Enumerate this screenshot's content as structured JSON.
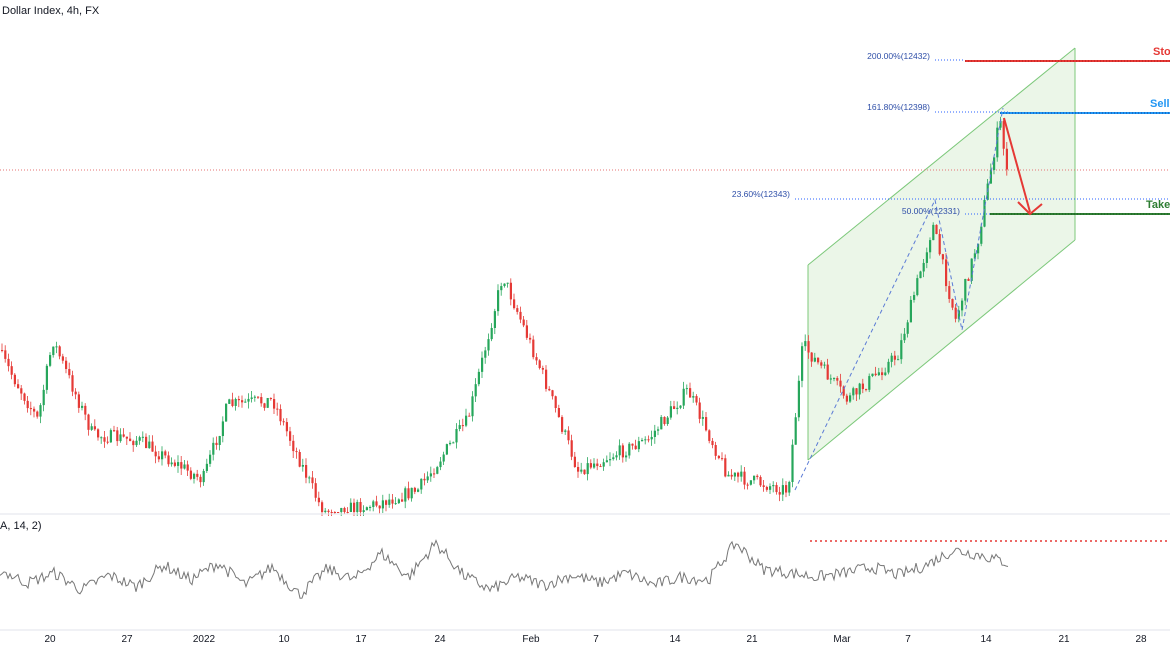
{
  "header": {
    "title": "Dollar Index, 4h, FX"
  },
  "oscillator": {
    "label": "A, 14, 2)"
  },
  "colors": {
    "up": "#26a65b",
    "down": "#e53935",
    "wick": "#333333",
    "channel_fill": "#e7f5e4",
    "channel_line": "#7cc87a",
    "fib_line": "#2962ff",
    "stop": "#e53935",
    "sell": "#2196f3",
    "take": "#2e7d32",
    "arrow": "#e53935",
    "osc_line": "#777777",
    "osc_ref": "#e53935",
    "price_ref": "#e57373",
    "axis_text": "#131722"
  },
  "annotations": {
    "stop_label": "Sto",
    "sell_label": "Sell",
    "take_label": "Take"
  },
  "chart_data": {
    "type": "candlestick",
    "title": "Dollar Index, 4h, FX",
    "x_ticks": [
      "20",
      "27",
      "2022",
      "10",
      "17",
      "24",
      "Feb",
      "7",
      "14",
      "21",
      "Mar",
      "7",
      "14",
      "21",
      "28"
    ],
    "fib_levels": [
      {
        "label": "200.00%(12432)",
        "value": 12432
      },
      {
        "label": "161.80%(12398)",
        "value": 12398
      },
      {
        "label": "23.60%(12343)",
        "value": 12343
      },
      {
        "label": "50.00%(12331)",
        "value": 12331
      }
    ],
    "anchors": [
      {
        "name": "start",
        "value": 11885
      },
      {
        "name": "peak",
        "value": 12245
      },
      {
        "name": "low",
        "value": 11828
      },
      {
        "name": "channel_start",
        "value": 11860
      },
      {
        "name": "swing_high",
        "value": 12345
      },
      {
        "name": "swing_low",
        "value": 12240
      },
      {
        "name": "top",
        "value": 12400
      },
      {
        "name": "last",
        "value": 12360
      }
    ],
    "oscillator": {
      "name": "A, 14, 2)",
      "anchors": [
        55,
        42,
        52,
        35,
        50,
        38,
        60,
        45,
        62,
        40,
        58,
        30,
        56,
        45,
        72,
        48,
        82,
        50,
        35,
        48,
        40,
        50,
        42,
        52,
        40,
        48,
        45,
        82,
        56,
        52,
        48,
        52,
        58,
        50,
        60,
        75,
        70,
        62
      ]
    }
  }
}
